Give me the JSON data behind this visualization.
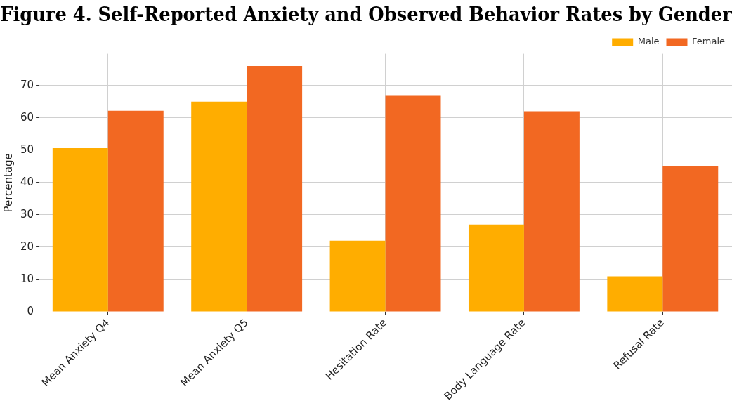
{
  "chart_data": {
    "type": "bar",
    "title": "Figure 4. Self-Reported Anxiety and Observed Behavior Rates by Gender",
    "ylabel": "Percentage",
    "categories": [
      "Mean Anxiety Q4",
      "Mean Anxiety Q5",
      "Hesitation Rate",
      "Body Language Rate",
      "Refusal Rate"
    ],
    "series": [
      {
        "name": "Male",
        "color": "#ffad00",
        "values": [
          50.6,
          65,
          22,
          27,
          11
        ]
      },
      {
        "name": "Female",
        "color": "#f26822",
        "values": [
          62.2,
          76,
          67,
          62,
          45
        ]
      }
    ],
    "ylim": [
      0,
      79.8
    ],
    "yticks": [
      0,
      10,
      20,
      30,
      40,
      50,
      60,
      70
    ],
    "grid": true,
    "legend": "top right"
  }
}
